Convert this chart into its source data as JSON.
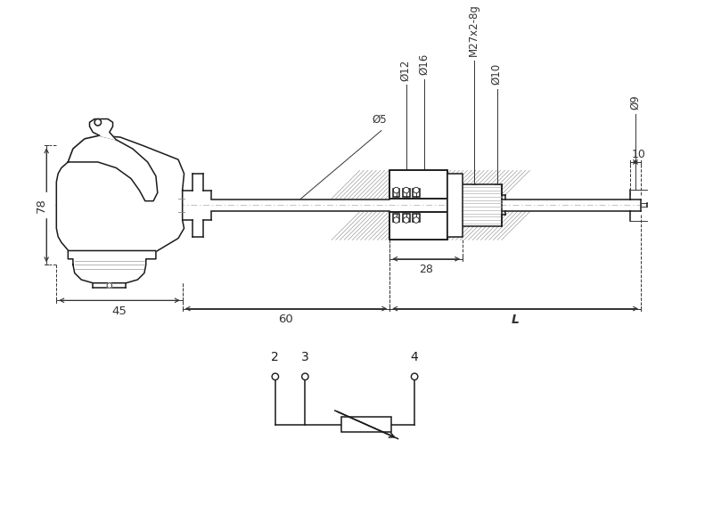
{
  "bg_color": "#ffffff",
  "line_color": "#1a1a1a",
  "dim_color": "#333333",
  "dim_78": "78",
  "dim_45": "45",
  "dim_60": "60",
  "dim_L": "L",
  "dim_28": "28",
  "dim_10": "10",
  "dim_d5": "Ø5",
  "dim_d9": "Ø9",
  "dim_d10": "Ø10",
  "dim_d12": "Ø12",
  "dim_d16": "Ø16",
  "dim_M27": "M27x2-8g",
  "terminal_labels": [
    "2",
    "3",
    "4"
  ]
}
